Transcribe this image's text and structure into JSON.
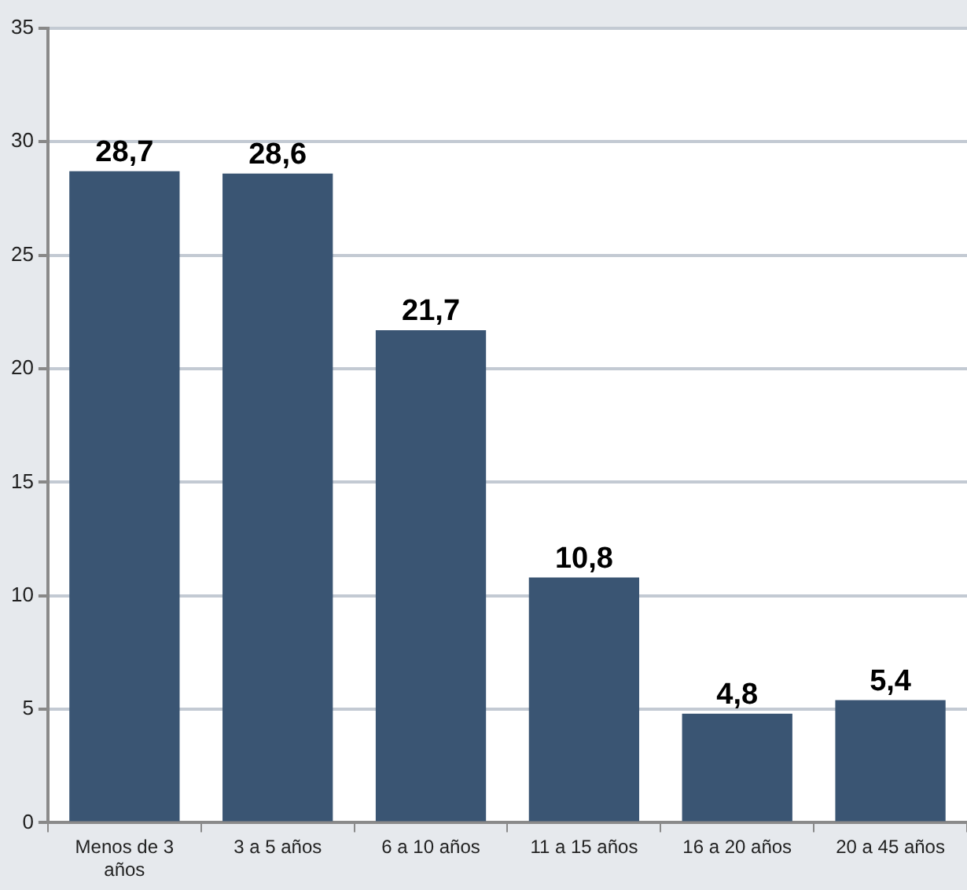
{
  "chart_data": {
    "type": "bar",
    "categories": [
      "Menos de 3 años",
      "3 a 5 años",
      "6 a 10 años",
      "11 a 15 años",
      "16 a 20 años",
      "20 a 45 años"
    ],
    "values": [
      28.7,
      28.6,
      21.7,
      10.8,
      4.8,
      5.4
    ],
    "value_labels": [
      "28,7",
      "28,6",
      "21,7",
      "10,8",
      "4,8",
      "5,4"
    ],
    "color": "#3a5573",
    "ylim": [
      0,
      35
    ],
    "yticks": [
      0,
      5,
      10,
      15,
      20,
      25,
      30,
      35
    ],
    "grid": "y"
  }
}
